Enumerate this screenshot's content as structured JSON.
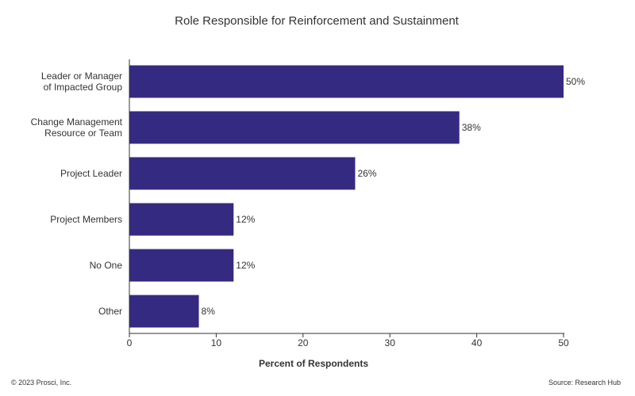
{
  "chart_data": {
    "type": "bar",
    "orientation": "horizontal",
    "title": "Role Responsible for Reinforcement and Sustainment",
    "xlabel": "Percent of Respondents",
    "ylabel": "",
    "xlim": [
      0,
      50
    ],
    "xticks": [
      0,
      10,
      20,
      30,
      40,
      50
    ],
    "categories": [
      [
        "Leader or Manager",
        "of Impacted Group"
      ],
      [
        "Change Management",
        "Resource or Team"
      ],
      [
        "Project Leader"
      ],
      [
        "Project Members"
      ],
      [
        "No One"
      ],
      [
        "Other"
      ]
    ],
    "values": [
      50,
      38,
      26,
      12,
      12,
      8
    ],
    "value_labels": [
      "50%",
      "38%",
      "26%",
      "12%",
      "12%",
      "8%"
    ],
    "bar_color": "#352a81",
    "grid": false,
    "legend": "none"
  },
  "footer": {
    "copyright": "© 2023 Prosci, Inc.",
    "source": "Source: Research Hub"
  }
}
